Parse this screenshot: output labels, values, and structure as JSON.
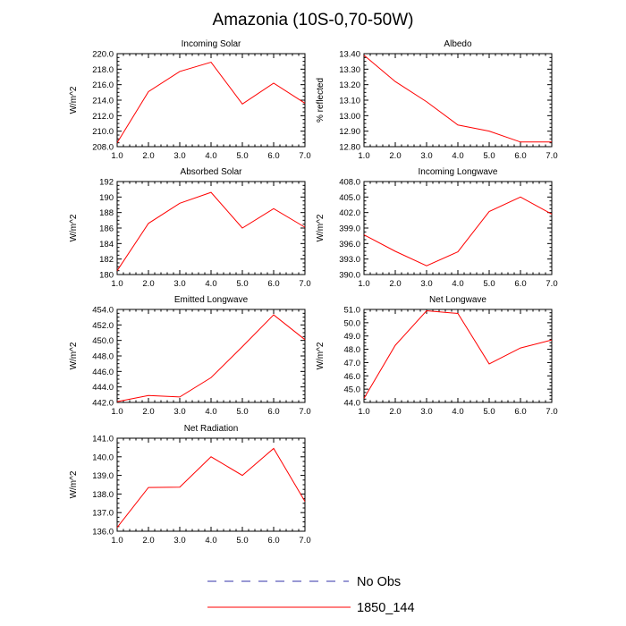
{
  "title": "Amazonia (10S-0,70-50W)",
  "colors": {
    "series": "#ff0000",
    "obs": "#3333aa"
  },
  "legend": [
    {
      "label": "No Obs",
      "style": "dashed",
      "color": "#3333aa"
    },
    {
      "label": "1850_144",
      "style": "solid",
      "color": "#ff0000"
    }
  ],
  "chart_data": [
    {
      "type": "line",
      "title": "Incoming Solar",
      "ylabel": "W/m^2",
      "x": [
        1,
        2,
        3,
        4,
        5,
        6,
        7
      ],
      "xlim": [
        1,
        7
      ],
      "xtick_labels": [
        "1.0",
        "2.0",
        "3.0",
        "4.0",
        "5.0",
        "6.0",
        "7.0"
      ],
      "ylim": [
        208,
        220
      ],
      "ytick_labels": [
        "208.0",
        "210.0",
        "212.0",
        "214.0",
        "216.0",
        "218.0",
        "220.0"
      ],
      "series": [
        {
          "name": "1850_144",
          "values": [
            208.5,
            215.1,
            217.7,
            218.9,
            213.5,
            216.2,
            213.6
          ]
        }
      ]
    },
    {
      "type": "line",
      "title": "Albedo",
      "ylabel": "% reflected",
      "x": [
        1,
        2,
        3,
        4,
        5,
        6,
        7
      ],
      "xlim": [
        1,
        7
      ],
      "xtick_labels": [
        "1.0",
        "2.0",
        "3.0",
        "4.0",
        "5.0",
        "6.0",
        "7.0"
      ],
      "ylim": [
        12.8,
        13.4
      ],
      "ytick_labels": [
        "12.80",
        "12.90",
        "13.00",
        "13.10",
        "13.20",
        "13.30",
        "13.40"
      ],
      "series": [
        {
          "name": "1850_144",
          "values": [
            13.39,
            13.22,
            13.09,
            12.94,
            12.9,
            12.83,
            12.83
          ]
        }
      ]
    },
    {
      "type": "line",
      "title": "Absorbed Solar",
      "ylabel": "W/m^2",
      "x": [
        1,
        2,
        3,
        4,
        5,
        6,
        7
      ],
      "xlim": [
        1,
        7
      ],
      "xtick_labels": [
        "1.0",
        "2.0",
        "3.0",
        "4.0",
        "5.0",
        "6.0",
        "7.0"
      ],
      "ylim": [
        180,
        192
      ],
      "ytick_labels": [
        "180",
        "182",
        "184",
        "186",
        "188",
        "190",
        "192"
      ],
      "series": [
        {
          "name": "1850_144",
          "values": [
            180.5,
            186.6,
            189.2,
            190.6,
            186.0,
            188.5,
            186.1
          ]
        }
      ]
    },
    {
      "type": "line",
      "title": "Incoming Longwave",
      "ylabel": "W/m^2",
      "x": [
        1,
        2,
        3,
        4,
        5,
        6,
        7
      ],
      "xlim": [
        1,
        7
      ],
      "xtick_labels": [
        "1.0",
        "2.0",
        "3.0",
        "4.0",
        "5.0",
        "6.0",
        "7.0"
      ],
      "ylim": [
        390,
        408
      ],
      "ytick_labels": [
        "390.0",
        "393.0",
        "396.0",
        "399.0",
        "402.0",
        "405.0",
        "408.0"
      ],
      "series": [
        {
          "name": "1850_144",
          "values": [
            397.7,
            394.5,
            391.7,
            394.4,
            402.2,
            405.0,
            401.7
          ]
        }
      ]
    },
    {
      "type": "line",
      "title": "Emitted Longwave",
      "ylabel": "W/m^2",
      "x": [
        1,
        2,
        3,
        4,
        5,
        6,
        7
      ],
      "xlim": [
        1,
        7
      ],
      "xtick_labels": [
        "1.0",
        "2.0",
        "3.0",
        "4.0",
        "5.0",
        "6.0",
        "7.0"
      ],
      "ylim": [
        442,
        454
      ],
      "ytick_labels": [
        "442.0",
        "444.0",
        "446.0",
        "448.0",
        "450.0",
        "452.0",
        "454.0"
      ],
      "series": [
        {
          "name": "1850_144",
          "values": [
            442.1,
            442.9,
            442.7,
            445.2,
            449.2,
            453.3,
            450.1
          ]
        }
      ]
    },
    {
      "type": "line",
      "title": "Net Longwave",
      "ylabel": "W/m^2",
      "x": [
        1,
        2,
        3,
        4,
        5,
        6,
        7
      ],
      "xlim": [
        1,
        7
      ],
      "xtick_labels": [
        "1.0",
        "2.0",
        "3.0",
        "4.0",
        "5.0",
        "6.0",
        "7.0"
      ],
      "ylim": [
        44,
        51
      ],
      "ytick_labels": [
        "44.0",
        "45.0",
        "46.0",
        "47.0",
        "48.0",
        "49.0",
        "50.0",
        "51.0"
      ],
      "series": [
        {
          "name": "1850_144",
          "values": [
            44.3,
            48.3,
            50.9,
            50.7,
            46.9,
            48.1,
            48.7
          ]
        }
      ]
    },
    {
      "type": "line",
      "title": "Net Radiation",
      "ylabel": "W/m^2",
      "x": [
        1,
        2,
        3,
        4,
        5,
        6,
        7
      ],
      "xlim": [
        1,
        7
      ],
      "xtick_labels": [
        "1.0",
        "2.0",
        "3.0",
        "4.0",
        "5.0",
        "6.0",
        "7.0"
      ],
      "ylim": [
        136,
        141
      ],
      "ytick_labels": [
        "136.0",
        "137.0",
        "138.0",
        "139.0",
        "140.0",
        "141.0"
      ],
      "series": [
        {
          "name": "1850_144",
          "values": [
            136.2,
            138.35,
            138.37,
            140.0,
            139.0,
            140.45,
            137.6
          ]
        }
      ]
    }
  ]
}
